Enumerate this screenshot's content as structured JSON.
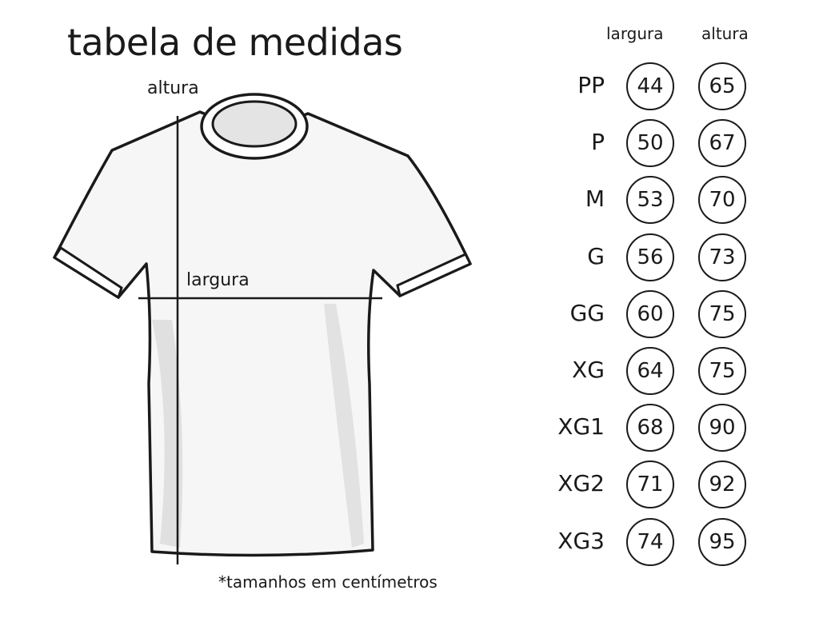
{
  "title": "tabela de medidas",
  "diagram": {
    "height_label": "altura",
    "width_label": "largura"
  },
  "note": "*tamanhos em centímetros",
  "table": {
    "headers": {
      "width": "largura",
      "height": "altura"
    },
    "rows": [
      {
        "size": "PP",
        "width": "44",
        "height": "65"
      },
      {
        "size": "P",
        "width": "50",
        "height": "67"
      },
      {
        "size": "M",
        "width": "53",
        "height": "70"
      },
      {
        "size": "G",
        "width": "56",
        "height": "73"
      },
      {
        "size": "GG",
        "width": "60",
        "height": "75"
      },
      {
        "size": "XG",
        "width": "64",
        "height": "75"
      },
      {
        "size": "XG1",
        "width": "68",
        "height": "90"
      },
      {
        "size": "XG2",
        "width": "71",
        "height": "92"
      },
      {
        "size": "XG3",
        "width": "74",
        "height": "95"
      }
    ]
  }
}
